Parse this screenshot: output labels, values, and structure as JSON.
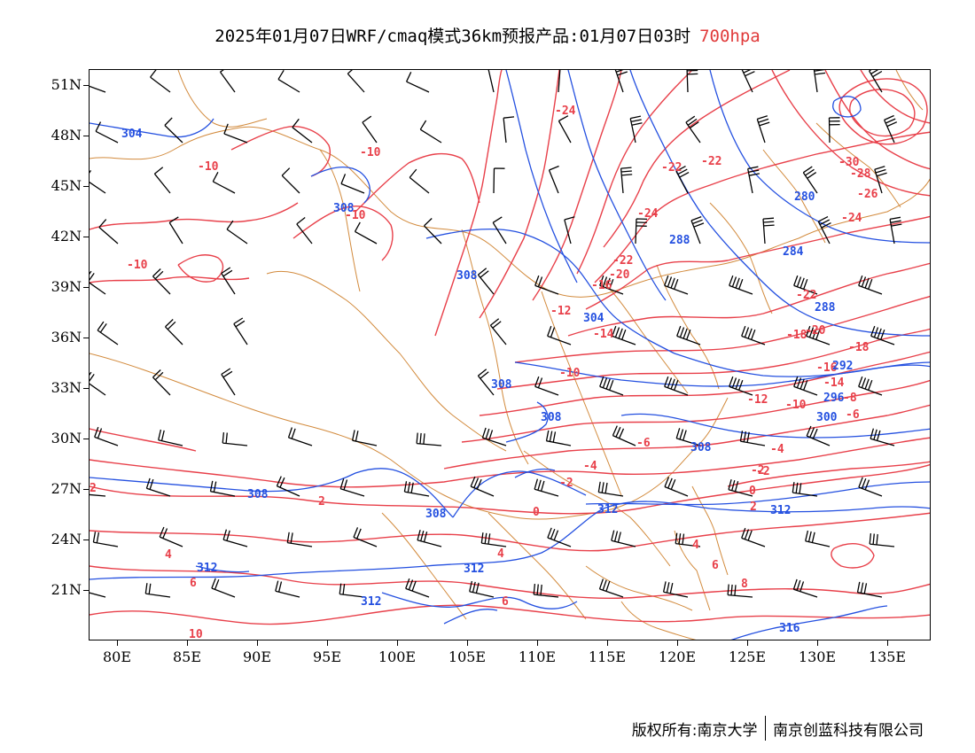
{
  "title": {
    "main": "2025年01月07日WRF/cmaq模式36km预报产品:01月07日03时",
    "level": "700hpa"
  },
  "colors": {
    "temperature": "#e8404a",
    "height": "#2450e0",
    "border": "#d28a3c",
    "wind": "#000000",
    "level_text": "#e03a3a"
  },
  "axes": {
    "lat_labels": [
      "51N",
      "48N",
      "45N",
      "42N",
      "39N",
      "36N",
      "33N",
      "30N",
      "27N",
      "24N",
      "21N"
    ],
    "lon_labels": [
      "80E",
      "85E",
      "90E",
      "95E",
      "100E",
      "105E",
      "110E",
      "115E",
      "120E",
      "125E",
      "130E",
      "135E"
    ]
  },
  "temperature_labels": [
    "-24",
    "-10",
    "-10",
    "-10",
    "-10",
    "-22",
    "-22",
    "-24",
    "-22",
    "-28",
    "-26",
    "-24",
    "-30",
    "-18",
    "-20",
    "-16",
    "-12",
    "-14",
    "-22",
    "-20",
    "-18",
    "-16",
    "-14",
    "-10",
    "-12",
    "-10",
    "-8",
    "-6",
    "-6",
    "-4",
    "-4",
    "-2",
    "-2",
    "0",
    "0",
    "2",
    "2",
    "2",
    "4",
    "4",
    "6",
    "6",
    "6",
    "8",
    "10",
    "-2",
    "4"
  ],
  "height_labels": [
    "304",
    "308",
    "308",
    "304",
    "288",
    "280",
    "284",
    "288",
    "292",
    "296",
    "300",
    "308",
    "308",
    "308",
    "308",
    "308",
    "312",
    "312",
    "312",
    "312",
    "312",
    "316"
  ],
  "footer": {
    "left": "版权所有:南京大学",
    "right": "南京创蓝科技有限公司"
  }
}
